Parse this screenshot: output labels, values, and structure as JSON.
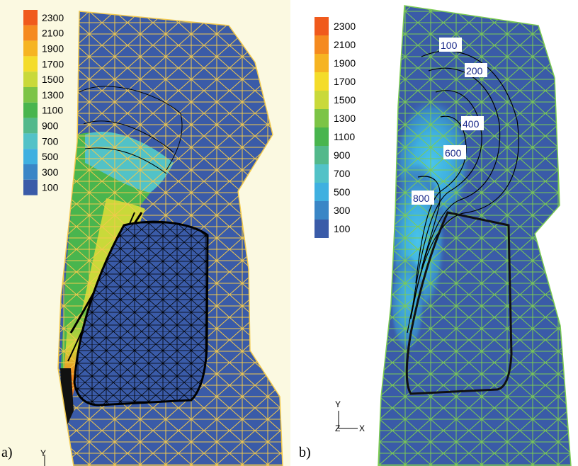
{
  "panels": [
    {
      "id": "a",
      "label": "a)",
      "background": "#fbf9e1",
      "mesh_color": "#f2c94c",
      "legend": {
        "values": [
          "2300",
          "2100",
          "1900",
          "1700",
          "1500",
          "1300",
          "1100",
          "900",
          "700",
          "500",
          "300",
          "100"
        ]
      },
      "axis": {
        "y_label": "Y"
      }
    },
    {
      "id": "b",
      "label": "b)",
      "background": "#ffffff",
      "mesh_color": "#7ccc52",
      "legend": {
        "values": [
          "2300",
          "2100",
          "1900",
          "1700",
          "1500",
          "1300",
          "1100",
          "900",
          "700",
          "500",
          "300",
          "100"
        ]
      },
      "contour_labels": [
        "100",
        "200",
        "400",
        "600",
        "800"
      ],
      "axis": {
        "y_label": "Y",
        "x_label": "X",
        "z_label": "Z"
      }
    }
  ],
  "colors": {
    "field": "#3a5ba8",
    "legend_scale": [
      "#f05a1c",
      "#f58a1f",
      "#f6b422",
      "#f4dc2a",
      "#c9d93a",
      "#7cc446",
      "#49b54e",
      "#53b98b",
      "#52c2c7",
      "#3fb0e0",
      "#3a86c6",
      "#3a5ba8"
    ]
  }
}
